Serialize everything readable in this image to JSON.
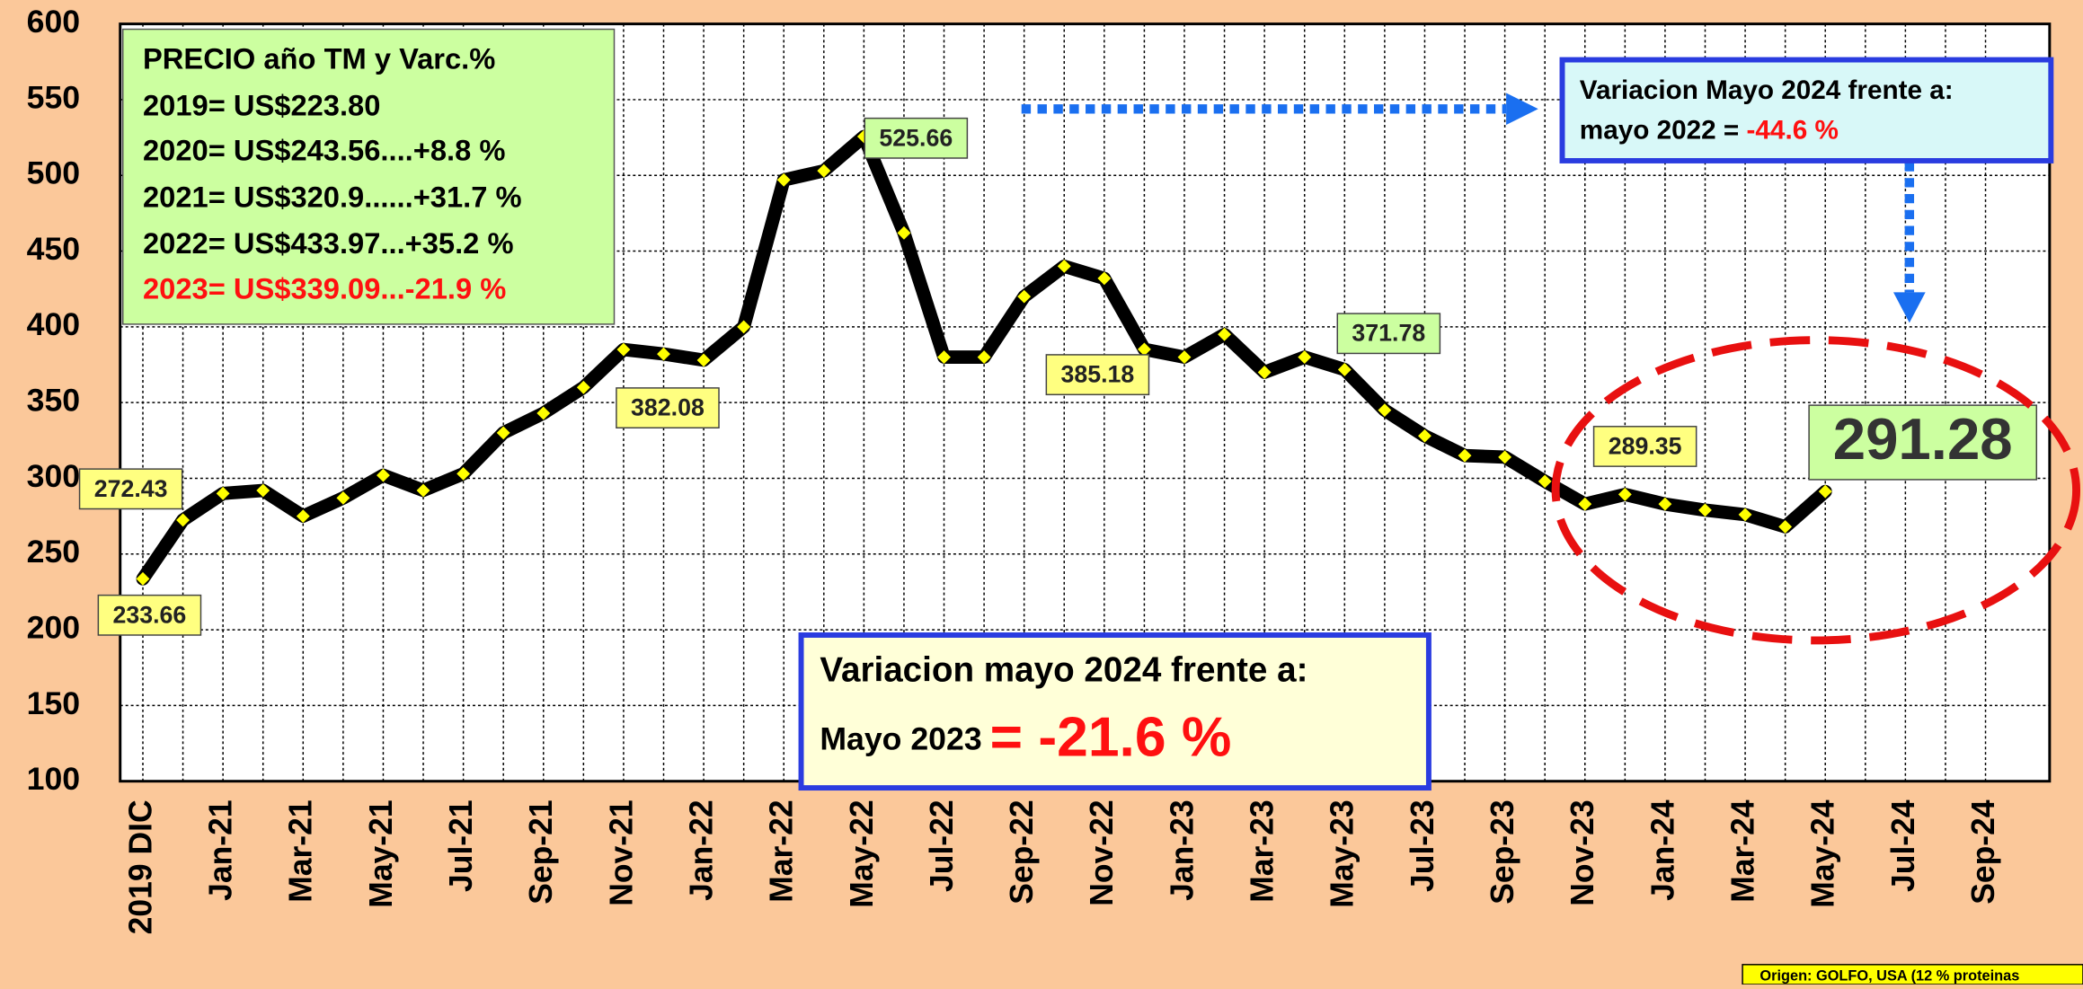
{
  "chart_data": {
    "type": "line",
    "categories": [
      "2019 DIC",
      null,
      "Jan-21",
      null,
      "Mar-21",
      null,
      "May-21",
      null,
      "Jul-21",
      null,
      "Sep-21",
      null,
      "Nov-21",
      null,
      "Jan-22",
      null,
      "Mar-22",
      null,
      "May-22",
      null,
      "Jul-22",
      null,
      "Sep-22",
      null,
      "Nov-22",
      null,
      "Jan-23",
      null,
      "Mar-23",
      null,
      "May-23",
      null,
      "Jul-23",
      null,
      "Sep-23",
      null,
      "Nov-23",
      null,
      "Jan-24",
      null,
      "Mar-24",
      null,
      "May-24",
      null,
      "Jul-24",
      null,
      "Sep-24"
    ],
    "series": [
      {
        "color": "#000000",
        "marker_color": "#ffff00",
        "values": [
          233.66,
          272.43,
          290,
          292,
          275,
          287,
          302,
          292,
          303,
          330,
          343,
          360,
          385,
          382.08,
          378,
          400,
          497,
          503,
          525.66,
          462,
          380,
          380,
          420,
          440,
          432,
          385.18,
          380,
          395,
          370,
          380,
          371.78,
          345,
          328,
          315,
          314,
          298,
          283,
          289.35,
          283,
          279,
          276,
          268,
          291.28,
          null,
          null,
          null,
          null
        ],
        "value_labels": [
          "233.66",
          "272.43",
          null,
          null,
          null,
          null,
          null,
          null,
          null,
          null,
          null,
          null,
          null,
          "382.08",
          null,
          null,
          null,
          null,
          "525.66",
          null,
          null,
          null,
          null,
          null,
          null,
          "385.18",
          null,
          null,
          null,
          null,
          "371.78",
          null,
          null,
          null,
          null,
          null,
          null,
          "289.35",
          null,
          null,
          null,
          null,
          "291.28",
          null,
          null,
          null,
          null
        ]
      }
    ],
    "ylim": [
      100,
      600
    ],
    "yticks": [
      100,
      150,
      200,
      250,
      300,
      350,
      400,
      450,
      500,
      550,
      600
    ],
    "grid": true,
    "annotations": {
      "price_box": [
        "PRECIO año TM y Varc.%",
        "2019= US$223.80",
        "2020= US$243.56....+8.8 %",
        "2021= US$320.9......+31.7 %",
        "2022= US$433.97...+35.2 %",
        "2023= US$339.09...-21.9 %"
      ],
      "box_2022": {
        "line1": "Variacion Mayo 2024 frente a:",
        "line2": "mayo 2022 = ",
        "value": "-44.6 %"
      },
      "box_2023": {
        "line1": "Variacion mayo 2024 frente a:",
        "line2": "Mayo 2023",
        "value": "= -21.6 %"
      },
      "source": "Origen: GOLFO, USA (12 % proteinas"
    }
  }
}
